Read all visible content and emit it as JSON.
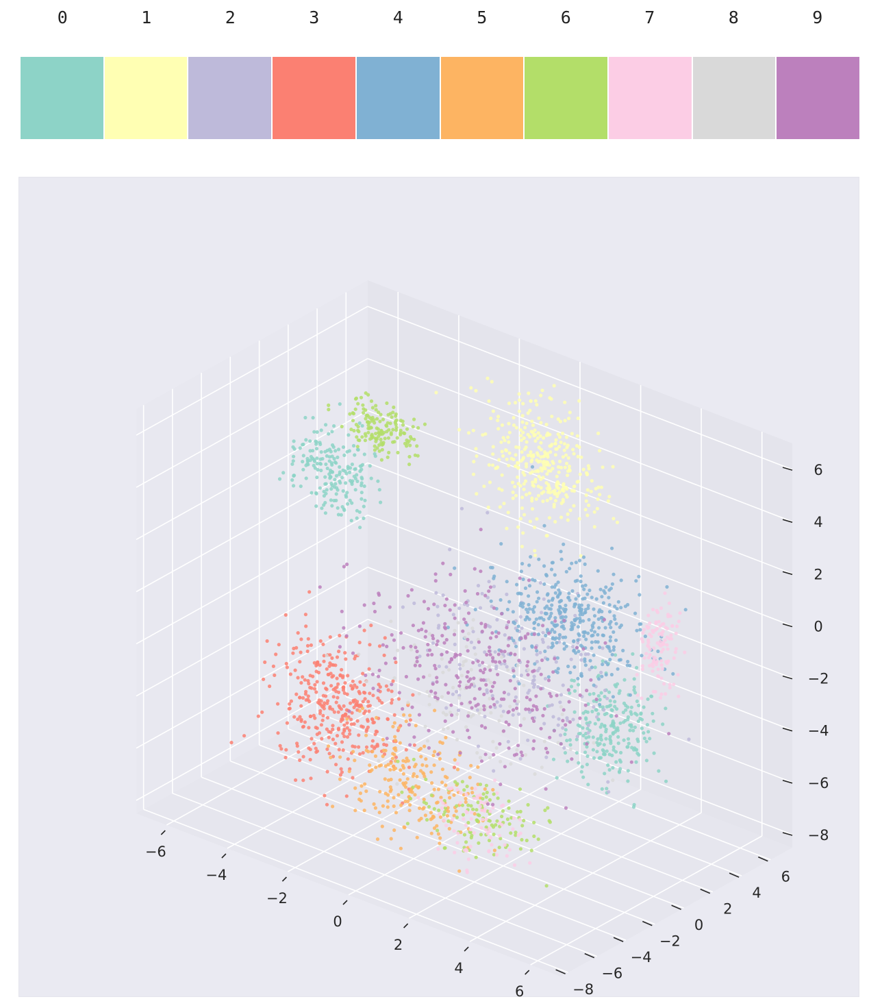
{
  "chart_data": {
    "type": "scatter",
    "dimensions": 3,
    "title": "",
    "xlabel": "",
    "ylabel": "",
    "zlabel": "",
    "classes": [
      "0",
      "1",
      "2",
      "3",
      "4",
      "5",
      "6",
      "7",
      "8",
      "9"
    ],
    "colors": [
      "#8dd3c7",
      "#ffffb3",
      "#bebada",
      "#fb8072",
      "#80b1d3",
      "#fdb462",
      "#b3de69",
      "#fccde5",
      "#d9d9d9",
      "#bc80bd"
    ],
    "xlim": [
      -7,
      7
    ],
    "ylim": [
      -8.5,
      7
    ],
    "zlim": [
      -8.5,
      7.5
    ],
    "x_ticks": [
      -6,
      -4,
      -2,
      0,
      2,
      4,
      6
    ],
    "y_ticks": [
      -8,
      -6,
      -4,
      -2,
      0,
      2,
      4,
      6
    ],
    "z_ticks": [
      -8,
      -6,
      -4,
      -2,
      0,
      2,
      4,
      6
    ],
    "x_tick_labels": [
      "−6",
      "−4",
      "−2",
      "0",
      "2",
      "4",
      "6"
    ],
    "y_tick_labels": [
      "−8",
      "−6",
      "−4",
      "−2",
      "0",
      "2",
      "4",
      "6"
    ],
    "z_tick_labels": [
      "−8",
      "−6",
      "−4",
      "−2",
      "0",
      "2",
      "4",
      "6"
    ],
    "grid": true,
    "legend_position": "top",
    "clusters": [
      {
        "class": 0,
        "n": 200,
        "center": [
          -6.0,
          3.0,
          1.5
        ],
        "spread": [
          0.6,
          0.6,
          0.8
        ]
      },
      {
        "class": 0,
        "n": 240,
        "center": [
          5.2,
          -1.5,
          -2.0
        ],
        "spread": [
          0.7,
          0.8,
          1.0
        ]
      },
      {
        "class": 1,
        "n": 360,
        "center": [
          -0.3,
          5.5,
          3.6
        ],
        "spread": [
          0.9,
          0.7,
          1.2
        ]
      },
      {
        "class": 2,
        "n": 180,
        "center": [
          1.0,
          0.5,
          -2.0
        ],
        "spread": [
          1.6,
          1.4,
          1.4
        ]
      },
      {
        "class": 3,
        "n": 360,
        "center": [
          -2.0,
          -5.0,
          -3.2
        ],
        "spread": [
          1.0,
          0.9,
          1.3
        ]
      },
      {
        "class": 4,
        "n": 380,
        "center": [
          2.0,
          2.5,
          -0.4
        ],
        "spread": [
          1.2,
          1.0,
          1.0
        ]
      },
      {
        "class": 5,
        "n": 220,
        "center": [
          0.2,
          -4.5,
          -5.3
        ],
        "spread": [
          1.1,
          0.9,
          0.9
        ]
      },
      {
        "class": 6,
        "n": 150,
        "center": [
          -5.0,
          4.2,
          3.3
        ],
        "spread": [
          0.6,
          0.5,
          0.5
        ]
      },
      {
        "class": 6,
        "n": 120,
        "center": [
          1.6,
          -3.2,
          -6.5
        ],
        "spread": [
          1.0,
          0.8,
          0.6
        ]
      },
      {
        "class": 7,
        "n": 110,
        "center": [
          5.5,
          1.5,
          0.4
        ],
        "spread": [
          0.3,
          0.4,
          1.0
        ]
      },
      {
        "class": 7,
        "n": 80,
        "center": [
          2.2,
          -4.0,
          -6.0
        ],
        "spread": [
          0.8,
          0.8,
          0.7
        ]
      },
      {
        "class": 8,
        "n": 100,
        "center": [
          0.5,
          -1.0,
          -3.0
        ],
        "spread": [
          1.4,
          1.4,
          1.4
        ]
      },
      {
        "class": 9,
        "n": 300,
        "center": [
          0.0,
          0.0,
          -2.5
        ],
        "spread": [
          1.8,
          1.4,
          1.6
        ]
      }
    ]
  }
}
